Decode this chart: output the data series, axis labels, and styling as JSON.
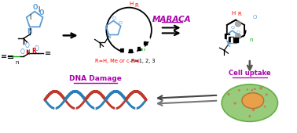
{
  "background_color": "#ffffff",
  "ring_color": "#5b9bd5",
  "green_color": "#00aa00",
  "red_color": "#ff0000",
  "maraca_color": "#aa00aa",
  "label_color": "#aa00aa",
  "black": "#000000",
  "dna_color1": "#c0392b",
  "dna_color2": "#2980b9",
  "cell_green": "#8dc66e",
  "cell_nucleus": "#e8a04a",
  "maraca_text": "MARACA",
  "dna_damage_text": "DNA Damage",
  "cell_uptake_text": "Cell uptake",
  "figsize": [
    3.78,
    1.7
  ],
  "dpi": 100
}
